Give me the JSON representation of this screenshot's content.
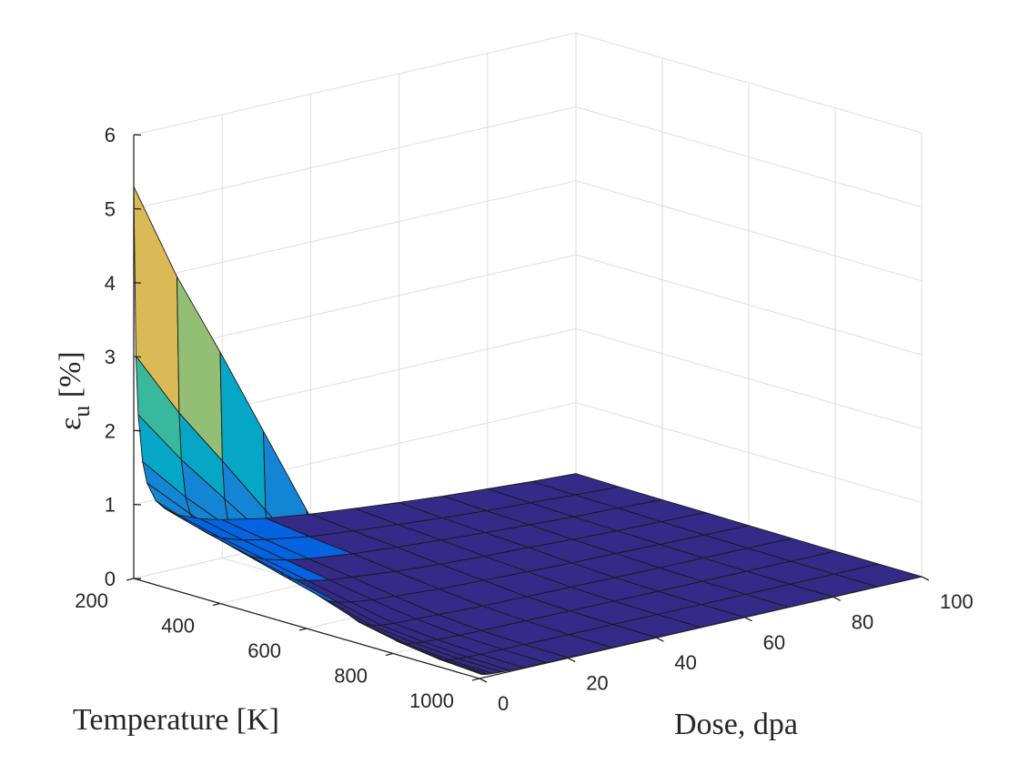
{
  "chart_data": {
    "type": "surface",
    "title": "",
    "xlabel": "Temperature [K]",
    "ylabel": "Dose, dpa",
    "zlabel_main": "ε",
    "zlabel_sub": "u",
    "zlabel_tail": " [%]",
    "x_ticks": [
      "200",
      "400",
      "600",
      "800",
      "1000"
    ],
    "y_ticks": [
      "0",
      "20",
      "40",
      "60",
      "80",
      "100"
    ],
    "z_ticks": [
      "0",
      "1",
      "2",
      "3",
      "4",
      "5",
      "6"
    ],
    "xlim": [
      200,
      1000
    ],
    "ylim": [
      0,
      100
    ],
    "zlim": [
      0,
      6
    ],
    "grid": true,
    "colormap": "parula",
    "colors": [
      "#352a87",
      "#0363e1",
      "#1485d4",
      "#06a7c6",
      "#38b99e",
      "#92bf73",
      "#d9ba56",
      "#fcce2e",
      "#f9fb0e"
    ],
    "temperatures": [
      200,
      300,
      400,
      500,
      600,
      700,
      800,
      900,
      1000
    ],
    "doses": [
      0,
      0.5,
      1,
      2,
      3,
      5,
      7,
      10,
      15,
      20,
      30,
      40,
      50,
      60,
      70,
      80,
      90,
      100
    ],
    "z": [
      [
        5.3,
        3.0,
        2.2,
        1.55,
        1.25,
        0.98,
        0.85,
        0.72,
        0.6,
        0.52,
        0.4,
        0.32,
        0.26,
        0.2,
        0.15,
        0.11,
        0.07,
        0.04
      ],
      [
        4.25,
        2.4,
        1.76,
        1.24,
        1.0,
        0.78,
        0.68,
        0.58,
        0.48,
        0.42,
        0.32,
        0.26,
        0.21,
        0.16,
        0.12,
        0.09,
        0.06,
        0.03
      ],
      [
        3.4,
        1.92,
        1.4,
        1.0,
        0.8,
        0.62,
        0.54,
        0.46,
        0.38,
        0.33,
        0.26,
        0.21,
        0.17,
        0.13,
        0.1,
        0.07,
        0.05,
        0.025
      ],
      [
        2.5,
        1.42,
        1.04,
        0.74,
        0.6,
        0.46,
        0.4,
        0.34,
        0.28,
        0.25,
        0.19,
        0.15,
        0.12,
        0.1,
        0.07,
        0.05,
        0.035,
        0.02
      ],
      [
        1.6,
        0.92,
        0.68,
        0.48,
        0.39,
        0.3,
        0.26,
        0.22,
        0.18,
        0.16,
        0.12,
        0.1,
        0.08,
        0.06,
        0.05,
        0.035,
        0.025,
        0.015
      ],
      [
        0.75,
        0.44,
        0.32,
        0.23,
        0.19,
        0.14,
        0.12,
        0.1,
        0.09,
        0.08,
        0.06,
        0.05,
        0.04,
        0.03,
        0.025,
        0.02,
        0.015,
        0.01
      ],
      [
        0.35,
        0.2,
        0.15,
        0.11,
        0.09,
        0.07,
        0.06,
        0.05,
        0.04,
        0.035,
        0.03,
        0.025,
        0.02,
        0.015,
        0.012,
        0.01,
        0.007,
        0.005
      ],
      [
        0.15,
        0.09,
        0.07,
        0.05,
        0.04,
        0.03,
        0.025,
        0.02,
        0.018,
        0.015,
        0.012,
        0.01,
        0.008,
        0.006,
        0.005,
        0.004,
        0.003,
        0.002
      ],
      [
        0.08,
        0.05,
        0.04,
        0.03,
        0.025,
        0.02,
        0.015,
        0.012,
        0.01,
        0.008,
        0.006,
        0.005,
        0.004,
        0.003,
        0.002,
        0.002,
        0.001,
        0.001
      ]
    ]
  }
}
